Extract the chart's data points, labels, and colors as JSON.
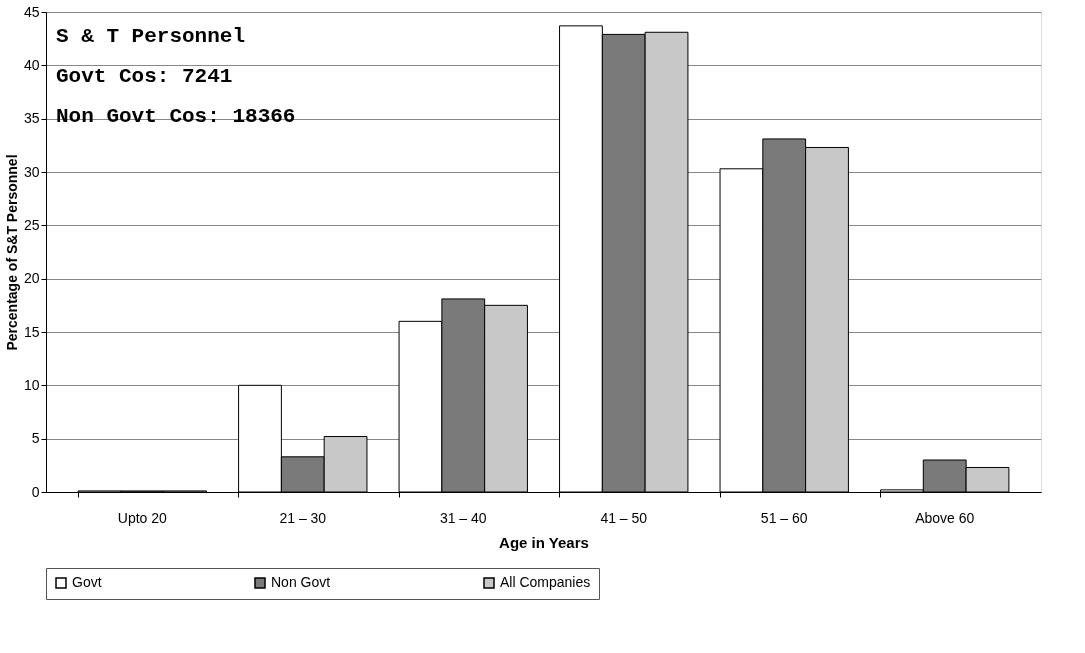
{
  "chart_data": {
    "type": "bar",
    "xlabel": "Age in Years",
    "ylabel": "Percentage of S&T Personnel",
    "categories": [
      "Upto 20",
      "21 – 30",
      "31 – 40",
      "41 – 50",
      "51 – 60",
      "Above 60"
    ],
    "series": [
      {
        "name": "Govt",
        "color": "#ffffff",
        "values": [
          0.1,
          10,
          16,
          43.7,
          30.3,
          0.2
        ]
      },
      {
        "name": "Non Govt",
        "color": "#7a7a7a",
        "values": [
          0.1,
          3.3,
          18.1,
          42.9,
          33.1,
          3.0
        ]
      },
      {
        "name": "All Companies",
        "color": "#c8c8c8",
        "values": [
          0.1,
          5.2,
          17.5,
          43.1,
          32.3,
          2.3
        ]
      }
    ],
    "ylim": [
      0,
      45
    ],
    "yticks": [
      0,
      5,
      10,
      15,
      20,
      25,
      30,
      35,
      40,
      45
    ],
    "grid": "y",
    "legend": "bottom",
    "annotations": [
      "S & T Personnel",
      "Govt Cos:   7241",
      "Non Govt Cos: 18366"
    ]
  }
}
